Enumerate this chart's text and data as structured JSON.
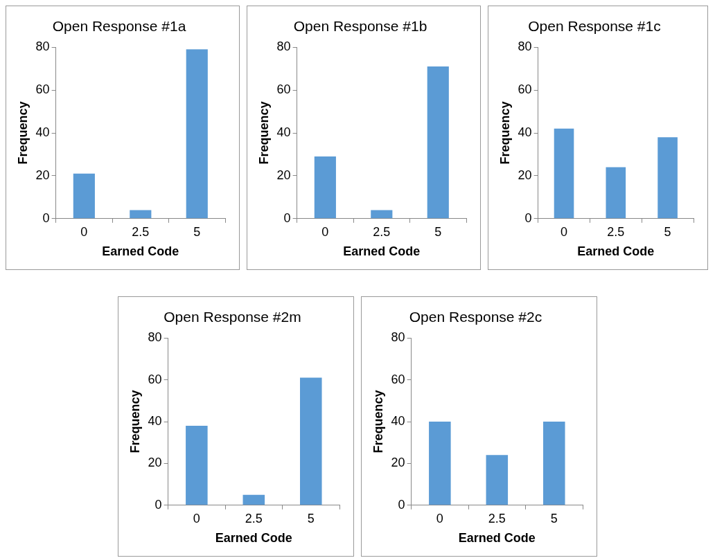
{
  "chart_data": [
    {
      "type": "bar",
      "title": "Open Response #1a",
      "xlabel": "Earned Code",
      "ylabel": "Frequency",
      "categories": [
        "0",
        "2.5",
        "5"
      ],
      "values": [
        21,
        4,
        79
      ],
      "color": "#5b9bd5",
      "ylim": [
        0,
        80
      ],
      "yticks": [
        0,
        20,
        40,
        60,
        80
      ],
      "grid": false,
      "legend": false
    },
    {
      "type": "bar",
      "title": "Open Response #1b",
      "xlabel": "Earned Code",
      "ylabel": "Frequency",
      "categories": [
        "0",
        "2.5",
        "5"
      ],
      "values": [
        29,
        4,
        71
      ],
      "color": "#5b9bd5",
      "ylim": [
        0,
        80
      ],
      "yticks": [
        0,
        20,
        40,
        60,
        80
      ],
      "grid": false,
      "legend": false
    },
    {
      "type": "bar",
      "title": "Open Response #1c",
      "xlabel": "Earned Code",
      "ylabel": "Frequency",
      "categories": [
        "0",
        "2.5",
        "5"
      ],
      "values": [
        42,
        24,
        38
      ],
      "color": "#5b9bd5",
      "ylim": [
        0,
        80
      ],
      "yticks": [
        0,
        20,
        40,
        60,
        80
      ],
      "grid": false,
      "legend": false
    },
    {
      "type": "bar",
      "title": "Open Response #2m",
      "xlabel": "Earned Code",
      "ylabel": "Frequency",
      "categories": [
        "0",
        "2.5",
        "5"
      ],
      "values": [
        38,
        5,
        61
      ],
      "color": "#5b9bd5",
      "ylim": [
        0,
        80
      ],
      "yticks": [
        0,
        20,
        40,
        60,
        80
      ],
      "grid": false,
      "legend": false
    },
    {
      "type": "bar",
      "title": "Open Response #2c",
      "xlabel": "Earned Code",
      "ylabel": "Frequency",
      "categories": [
        "0",
        "2.5",
        "5"
      ],
      "values": [
        40,
        24,
        40
      ],
      "color": "#5b9bd5",
      "ylim": [
        0,
        80
      ],
      "yticks": [
        0,
        20,
        40,
        60,
        80
      ],
      "grid": false,
      "legend": false
    }
  ]
}
